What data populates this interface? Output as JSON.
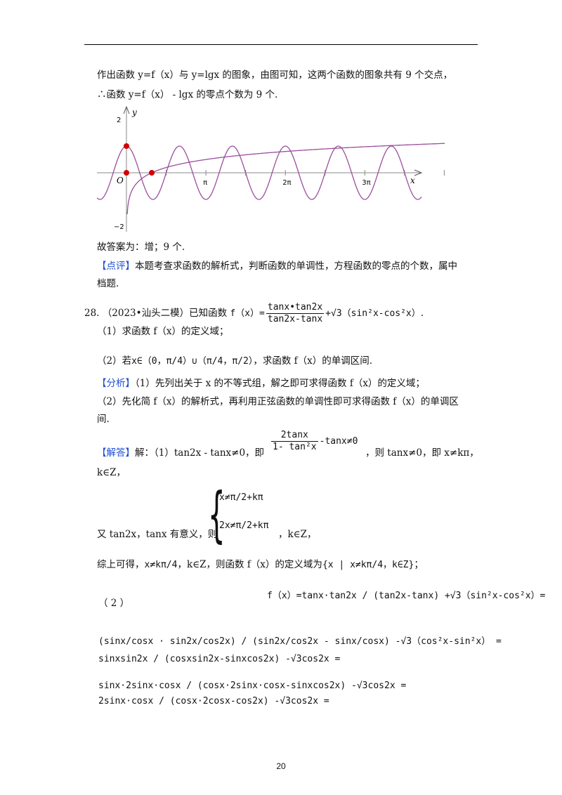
{
  "lines": {
    "l1": "作出函数 y=f（x）与 y=lgx 的图象，由图可知，这两个函数的图象共有 9 个交点，",
    "l2": "∴函数 y=f（x） - lgx 的零点个数为 9 个.",
    "answer": "故答案为：增；9 个.",
    "comment_label": "【点评】",
    "comment": "本题考查求函数的解析式，判断函数的单调性，方程函数的零点的个数，属中",
    "comment2": "档题.",
    "q_no": "28.",
    "q_src": "（2023•汕头二模）已知函数",
    "q_f": "f（x）=",
    "q_num": "tanx•tan2x",
    "q_den": "tan2x-tanx",
    "q_tail": "+√3（sin²x-cos²x）",
    "q_end": ".",
    "q1": "（1）求函数 f（x）的定义域；",
    "q2_pre": "（2）若",
    "q2_set": "x∈（0，π/4）∪（π/4，π/2）",
    "q2_post": "，求函数 f（x）的单调区间.",
    "analysis_label": "【分析】",
    "analysis1": "（1）先列出关于 x 的不等式组，解之即可求得函数 f（x）的定义域；",
    "analysis2": "（2）先化简 f（x）的解析式，再利用正弦函数的单调性即可求得函数 f（x）的单调区",
    "analysis3": "间.",
    "sol_label": "【解答】",
    "sol1a": "解：（1）tan2x - tanx≠0，即",
    "sol1_num": "2tanx",
    "sol1_den": "1- tan²x",
    "sol1_tail": "-tanx≠0",
    "sol1b": "，则 tanx≠0，即 x≠kπ，",
    "sol1c": "k∈Z，",
    "sol2a": "又 tan2x，tanx 有意义，则",
    "sys1": "x≠π/2+kπ",
    "sys2": "2x≠π/2+kπ",
    "sol2b": "，k∈Z，",
    "sol3a": "综上可得，",
    "sol3_eq": "x≠kπ/4",
    "sol3b": "，k∈Z，则函数 f（x）的定义域为",
    "sol3_set": "{x | x≠kπ/4，k∈Z}",
    "sol3c": "；",
    "part2": "（          2          ）",
    "eq1": "f（x）=tanx·tan2x / (tan2x-tanx) +√3（sin²x-cos²x）=",
    "eq2": "(sinx/cosx · sin2x/cos2x) / (sin2x/cos2x - sinx/cosx) -√3（cos²x-sin²x） =",
    "eq3": "sinxsin2x / (cosxsin2x-sinxcos2x) -√3cos2x =",
    "eq4": "sinx·2sinx·cosx / (cosx·2sinx·cosx-sinxcos2x) -√3cos2x =",
    "eq5": "2sinx·cosx / (cosx·2cosx-cos2x) -√3cos2x ="
  },
  "graph": {
    "y_label": "y",
    "x_label": "x",
    "origin": "O",
    "y_ticks": [
      "2",
      "−2"
    ],
    "x_ticks": [
      "π",
      "2π",
      "3π"
    ],
    "curve_color": "#9b4f9b",
    "point_color": "#d00000",
    "marked_points": [
      [
        0,
        1
      ],
      [
        0,
        0
      ],
      [
        1,
        0
      ]
    ]
  },
  "page_number": "20",
  "colors": {
    "label": "#1f4fd0"
  }
}
